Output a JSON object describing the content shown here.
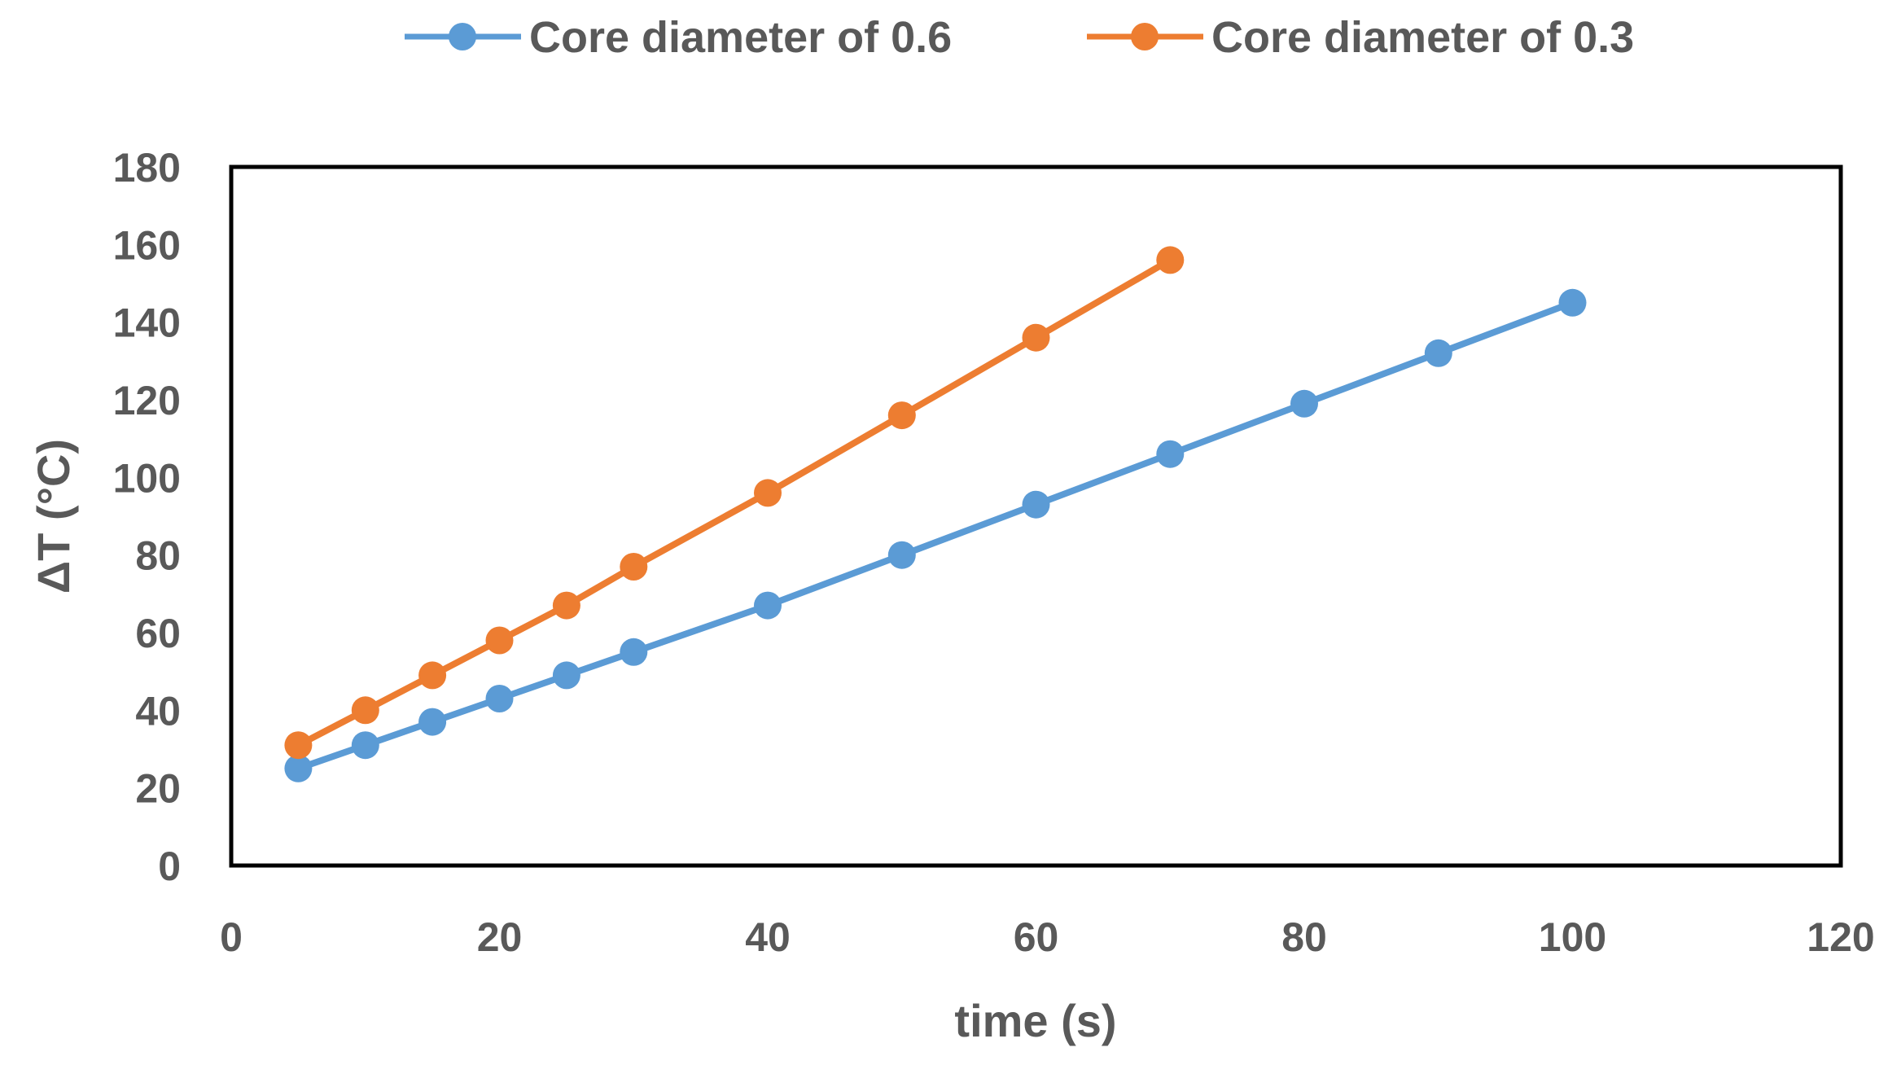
{
  "chart_data": {
    "type": "line",
    "title": "",
    "xlabel": "time (s)",
    "ylabel": "ΔT (°C)",
    "xlim": [
      0,
      120
    ],
    "ylim": [
      0,
      180
    ],
    "x_ticks": [
      0,
      20,
      40,
      60,
      80,
      100,
      120
    ],
    "y_ticks": [
      0,
      20,
      40,
      60,
      80,
      100,
      120,
      140,
      160,
      180
    ],
    "grid": false,
    "legend_position": "top-center",
    "series": [
      {
        "name": "Core diameter of 0.6",
        "color": "#5B9BD5",
        "x": [
          5,
          10,
          15,
          20,
          25,
          30,
          40,
          50,
          60,
          70,
          80,
          90,
          100
        ],
        "values": [
          25,
          31,
          37,
          43,
          49,
          55,
          67,
          80,
          93,
          106,
          119,
          132,
          145
        ]
      },
      {
        "name": "Core diameter of 0.3",
        "color": "#ED7D31",
        "x": [
          5,
          10,
          15,
          20,
          25,
          30,
          40,
          50,
          60,
          70
        ],
        "values": [
          31,
          40,
          49,
          58,
          67,
          77,
          96,
          116,
          136,
          156
        ]
      }
    ]
  }
}
